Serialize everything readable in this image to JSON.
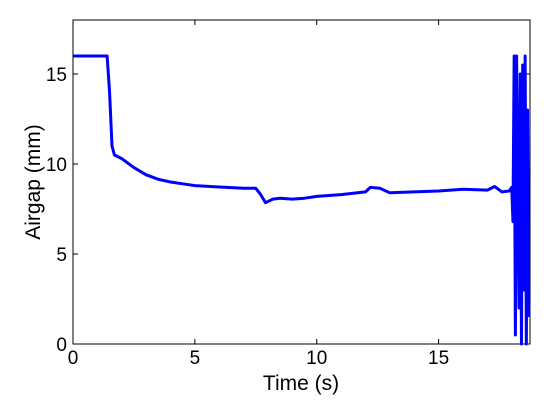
{
  "chart_data": {
    "type": "line",
    "xlabel": "Time (s)",
    "ylabel": "Airgap (mm)",
    "xlim": [
      0,
      18.75
    ],
    "ylim": [
      0,
      18
    ],
    "xticks": [
      0,
      5,
      10,
      15
    ],
    "yticks": [
      0,
      5,
      10,
      15
    ],
    "grid": false,
    "x": [
      0,
      1.4,
      1.5,
      1.6,
      1.7,
      2,
      2.5,
      3,
      3.5,
      4,
      4.5,
      5,
      6,
      7,
      7.5,
      7.7,
      7.9,
      8.2,
      8.5,
      9,
      9.5,
      10,
      11,
      12,
      12.2,
      12.6,
      13,
      14,
      15,
      16,
      17,
      17.3,
      17.6,
      17.9,
      18.0,
      18.05,
      18.1,
      18.15,
      18.2,
      18.3,
      18.35,
      18.4,
      18.45,
      18.5,
      18.55,
      18.6,
      18.65,
      18.7
    ],
    "series": [
      {
        "name": "Airgap",
        "color": "#0000ff",
        "values": [
          16,
          16,
          14,
          11,
          10.5,
          10.3,
          9.8,
          9.4,
          9.15,
          9.0,
          8.9,
          8.8,
          8.72,
          8.65,
          8.65,
          8.3,
          7.85,
          8.05,
          8.1,
          8.05,
          8.1,
          8.2,
          8.3,
          8.45,
          8.7,
          8.65,
          8.4,
          8.45,
          8.5,
          8.6,
          8.55,
          8.75,
          8.45,
          8.5,
          8.7,
          6.8,
          16,
          0.5,
          16,
          2,
          15,
          0,
          15.5,
          3,
          16,
          0,
          13,
          1.5
        ]
      }
    ]
  }
}
